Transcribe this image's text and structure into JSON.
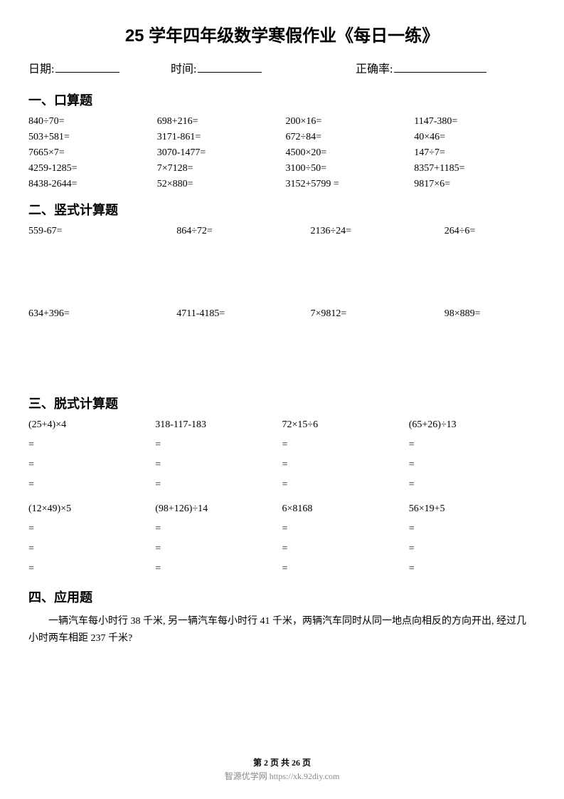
{
  "title": "25 学年四年级数学寒假作业《每日一练》",
  "header": {
    "date_label": "日期:",
    "time_label": "时间:",
    "accuracy_label": "正确率:"
  },
  "section1": {
    "heading": "一、口算题",
    "rows": [
      [
        "840÷70=",
        "698+216=",
        "200×16=",
        "1147-380="
      ],
      [
        "503+581=",
        "3171-861=",
        "672÷84=",
        "40×46="
      ],
      [
        "7665×7=",
        "3070-1477=",
        "4500×20=",
        "147÷7="
      ],
      [
        "4259-1285=",
        "7×7128=",
        "3100÷50=",
        "8357+1185="
      ],
      [
        "8438-2644=",
        "52×880=",
        "3152+5799 =",
        "9817×6="
      ]
    ]
  },
  "section2": {
    "heading": "二、竖式计算题",
    "rows": [
      [
        "559-67=",
        "864÷72=",
        "2136÷24=",
        "264÷6="
      ],
      [
        "634+396=",
        "4711-4185=",
        "7×9812=",
        "98×889="
      ]
    ]
  },
  "section3": {
    "heading": "三、脱式计算题",
    "eq": "=",
    "groups": [
      [
        "(25+4)×4",
        "318-117-183",
        "72×15÷6",
        "(65+26)÷13"
      ],
      [
        "(12×49)×5",
        "(98+126)÷14",
        "6×8168",
        "56×19+5"
      ]
    ]
  },
  "section4": {
    "heading": "四、应用题",
    "text": "一辆汽车每小时行 38 千米, 另一辆汽车每小时行 41 千米，两辆汽车同时从同一地点向相反的方向开出, 经过几小时两车相距 237 千米?"
  },
  "footer": {
    "page": "第 2 页 共 26 页",
    "source": "智源优学网 https://xk.92diy.com"
  }
}
